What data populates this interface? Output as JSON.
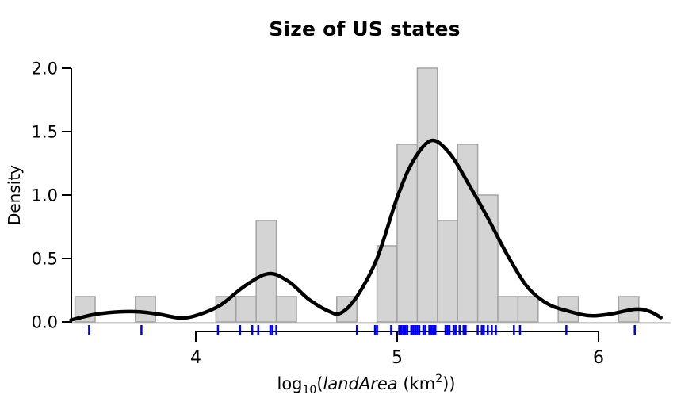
{
  "chart_data": {
    "type": "bar",
    "subtype": "histogram-with-density-and-rug",
    "title": "Size of US states",
    "ylabel": "Density",
    "xlabel_parts": {
      "prefix": "log",
      "sub": "10",
      "open_paren": "(",
      "var": "landArea",
      "unit_prefix": " (km",
      "sup": "2",
      "close_parens": "))"
    },
    "xticks": [
      4,
      5,
      6
    ],
    "xtick_labels": [
      "4",
      "5",
      "6"
    ],
    "yticks": [
      0,
      0.5,
      1,
      1.5,
      2
    ],
    "ytick_labels": [
      "0.0",
      "0.5",
      "1.0",
      "1.5",
      "2.0"
    ],
    "xlim": [
      3.35,
      6.35
    ],
    "ylim": [
      0,
      2.0
    ],
    "bin_width": 0.1,
    "bins": [
      {
        "start": 3.4,
        "end": 3.5,
        "density": 0.2,
        "count": 1
      },
      {
        "start": 3.7,
        "end": 3.8,
        "density": 0.2,
        "count": 1
      },
      {
        "start": 4.1,
        "end": 4.2,
        "density": 0.2,
        "count": 1
      },
      {
        "start": 4.2,
        "end": 4.3,
        "density": 0.2,
        "count": 1
      },
      {
        "start": 4.3,
        "end": 4.4,
        "density": 0.8,
        "count": 4
      },
      {
        "start": 4.4,
        "end": 4.5,
        "density": 0.2,
        "count": 1
      },
      {
        "start": 4.7,
        "end": 4.8,
        "density": 0.2,
        "count": 1
      },
      {
        "start": 4.9,
        "end": 5.0,
        "density": 0.6,
        "count": 3
      },
      {
        "start": 5.0,
        "end": 5.1,
        "density": 1.4,
        "count": 7
      },
      {
        "start": 5.1,
        "end": 5.2,
        "density": 2.0,
        "count": 10
      },
      {
        "start": 5.2,
        "end": 5.3,
        "density": 0.8,
        "count": 4
      },
      {
        "start": 5.3,
        "end": 5.4,
        "density": 1.4,
        "count": 7
      },
      {
        "start": 5.4,
        "end": 5.5,
        "density": 1.0,
        "count": 5
      },
      {
        "start": 5.5,
        "end": 5.6,
        "density": 0.2,
        "count": 1
      },
      {
        "start": 5.6,
        "end": 5.7,
        "density": 0.2,
        "count": 1
      },
      {
        "start": 5.8,
        "end": 5.9,
        "density": 0.2,
        "count": 1
      },
      {
        "start": 6.1,
        "end": 6.2,
        "density": 0.2,
        "count": 1
      }
    ],
    "density_curve": [
      [
        3.38,
        0.015
      ],
      [
        3.5,
        0.06
      ],
      [
        3.62,
        0.08
      ],
      [
        3.72,
        0.08
      ],
      [
        3.82,
        0.06
      ],
      [
        3.92,
        0.032
      ],
      [
        4.0,
        0.05
      ],
      [
        4.12,
        0.13
      ],
      [
        4.24,
        0.28
      ],
      [
        4.36,
        0.38
      ],
      [
        4.46,
        0.32
      ],
      [
        4.56,
        0.18
      ],
      [
        4.66,
        0.085
      ],
      [
        4.72,
        0.07
      ],
      [
        4.8,
        0.2
      ],
      [
        4.9,
        0.5
      ],
      [
        5.0,
        0.98
      ],
      [
        5.08,
        1.27
      ],
      [
        5.17,
        1.43
      ],
      [
        5.26,
        1.33
      ],
      [
        5.35,
        1.1
      ],
      [
        5.45,
        0.82
      ],
      [
        5.55,
        0.52
      ],
      [
        5.65,
        0.27
      ],
      [
        5.75,
        0.14
      ],
      [
        5.85,
        0.085
      ],
      [
        5.95,
        0.05
      ],
      [
        6.05,
        0.06
      ],
      [
        6.18,
        0.1
      ],
      [
        6.25,
        0.085
      ],
      [
        6.31,
        0.035
      ]
    ],
    "rug": [
      3.47,
      3.73,
      4.11,
      4.22,
      4.28,
      4.31,
      4.37,
      4.38,
      4.4,
      4.8,
      4.89,
      4.9,
      4.97,
      5.01,
      5.02,
      5.03,
      5.04,
      5.05,
      5.07,
      5.08,
      5.09,
      5.1,
      5.11,
      5.13,
      5.14,
      5.16,
      5.16,
      5.17,
      5.18,
      5.19,
      5.24,
      5.25,
      5.25,
      5.26,
      5.28,
      5.29,
      5.31,
      5.33,
      5.33,
      5.34,
      5.4,
      5.42,
      5.43,
      5.45,
      5.47,
      5.49,
      5.58,
      5.61,
      5.84,
      6.18
    ],
    "legend": null,
    "grid": false,
    "colors": {
      "bar_fill": "#d4d4d4",
      "bar_stroke": "#a3a3a3",
      "curve": "#000000",
      "rug": "#0000ee",
      "axis": "#000000",
      "baseline": "#c9c9c9",
      "text": "#000000"
    }
  }
}
